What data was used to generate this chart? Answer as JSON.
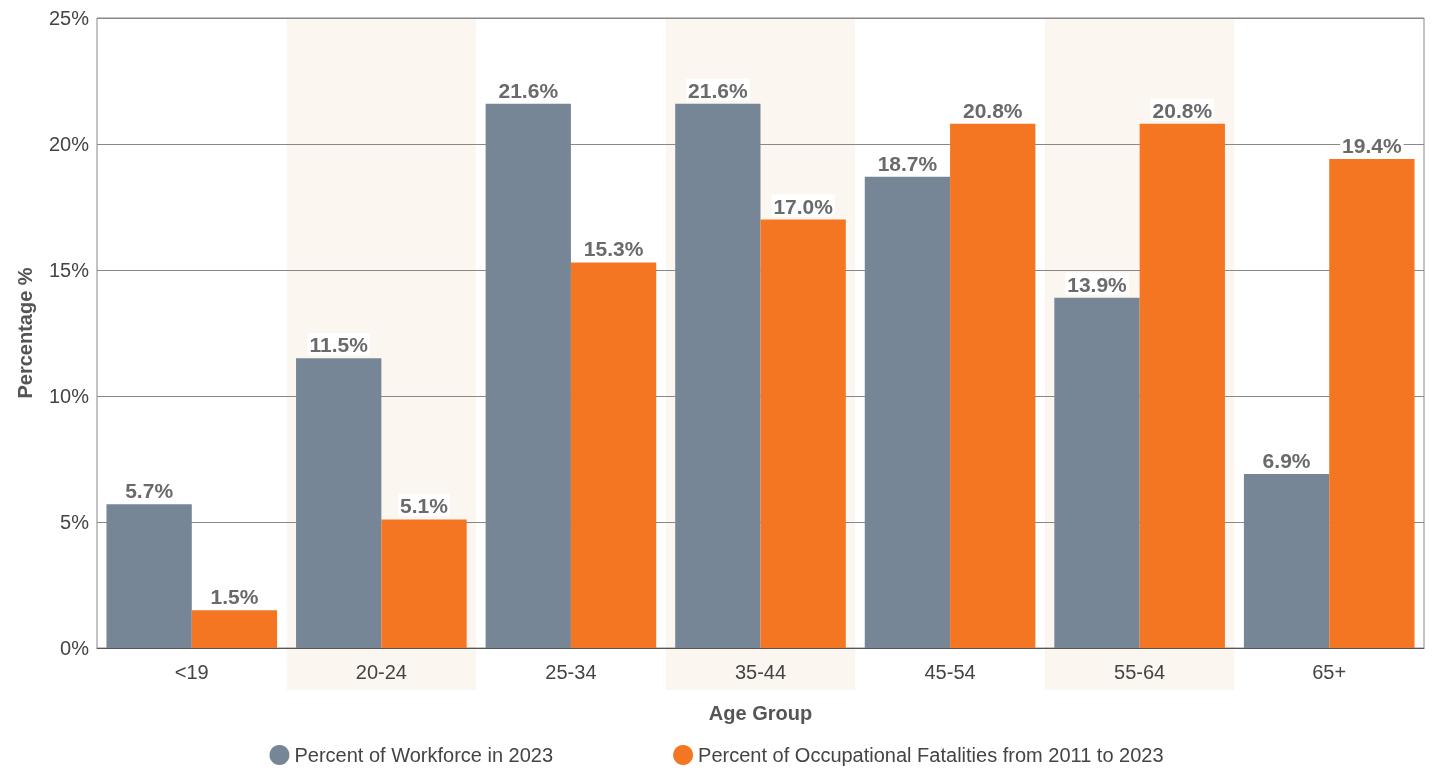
{
  "chart_data": {
    "type": "bar",
    "xlabel": "Age Group",
    "ylabel": "Percentage %",
    "categories": [
      "<19",
      "20-24",
      "25-34",
      "35-44",
      "45-54",
      "55-64",
      "65+"
    ],
    "series": [
      {
        "name": "Percent of Workforce in 2023",
        "color": "#768696",
        "values": [
          5.7,
          11.5,
          21.6,
          21.6,
          18.7,
          13.9,
          6.9
        ],
        "value_labels": [
          "5.7%",
          "11.5%",
          "21.6%",
          "21.6%",
          "18.7%",
          "13.9%",
          "6.9%"
        ]
      },
      {
        "name": "Percent of Occupational Fatalities from 2011 to 2023",
        "color": "#f47623",
        "values": [
          1.5,
          5.1,
          15.3,
          17.0,
          20.8,
          20.8,
          19.4
        ],
        "value_labels": [
          "1.5%",
          "5.1%",
          "15.3%",
          "17.0%",
          "20.8%",
          "20.8%",
          "19.4%"
        ]
      }
    ],
    "ylim": [
      0,
      25
    ],
    "yticks": [
      {
        "value": 0,
        "label": "0%"
      },
      {
        "value": 5,
        "label": "5%"
      },
      {
        "value": 10,
        "label": "10%"
      },
      {
        "value": 15,
        "label": "15%"
      },
      {
        "value": 20,
        "label": "20%"
      },
      {
        "value": 25,
        "label": "25%"
      }
    ],
    "bands": [
      {
        "axis": "x",
        "from": "20-24",
        "to": "20-24",
        "color": "#fcf6f1"
      },
      {
        "axis": "x",
        "from": "35-44",
        "to": "35-44",
        "color": "#fcf6f1"
      },
      {
        "axis": "x",
        "from": "55-64",
        "to": "55-64",
        "color": "#fcf6f1"
      }
    ],
    "grid": "y",
    "legend": "bottom"
  }
}
